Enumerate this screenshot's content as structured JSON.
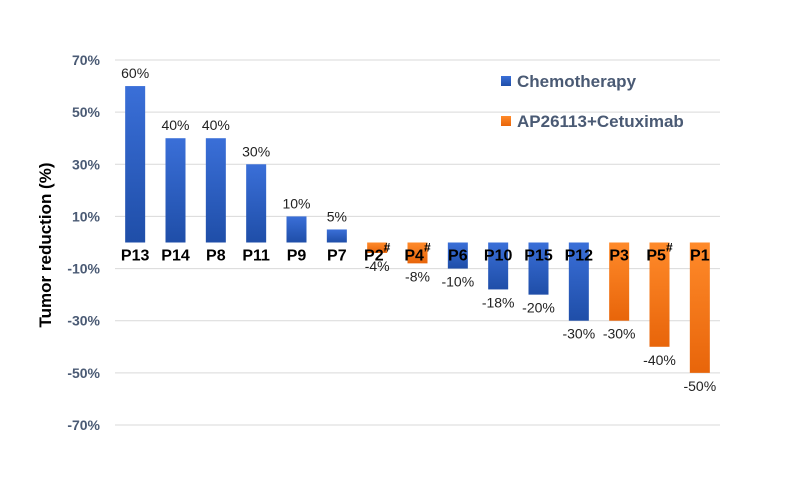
{
  "chart_data": {
    "type": "bar",
    "ylabel": "Tumor reduction (%)",
    "xlabel": "",
    "ylim": [
      -70,
      70
    ],
    "yticks": [
      70,
      50,
      30,
      10,
      -10,
      -30,
      -50,
      -70
    ],
    "ytick_labels": [
      "70%",
      "50%",
      "30%",
      "10%",
      "-10%",
      "-30%",
      "-50%",
      "-70%"
    ],
    "grid": true,
    "legend_position": "top-right",
    "series": [
      {
        "name": "Chemotherapy",
        "color": "#2f5fc8"
      },
      {
        "name": "AP26113+Cetuximab",
        "color": "#ff7a14"
      }
    ],
    "categories": [
      "P13",
      "P14",
      "P8",
      "P11",
      "P9",
      "P7",
      "P2",
      "P4",
      "P6",
      "P10",
      "P15",
      "P12",
      "P3",
      "P5",
      "P1"
    ],
    "superscripts": [
      "",
      "",
      "",
      "",
      "",
      "",
      "#",
      "#",
      "",
      "",
      "",
      "",
      "",
      "#",
      ""
    ],
    "values": [
      60,
      40,
      40,
      30,
      10,
      5,
      -4,
      -8,
      -10,
      -18,
      -20,
      -30,
      -30,
      -40,
      -50
    ],
    "value_labels": [
      "60%",
      "40%",
      "40%",
      "30%",
      "10%",
      "5%",
      "-4%",
      "-8%",
      "-10%",
      "-18%",
      "-20%",
      "-30%",
      "-30%",
      "-40%",
      "-50%"
    ],
    "series_index": [
      0,
      0,
      0,
      0,
      0,
      0,
      1,
      1,
      0,
      0,
      0,
      0,
      1,
      1,
      1
    ]
  }
}
